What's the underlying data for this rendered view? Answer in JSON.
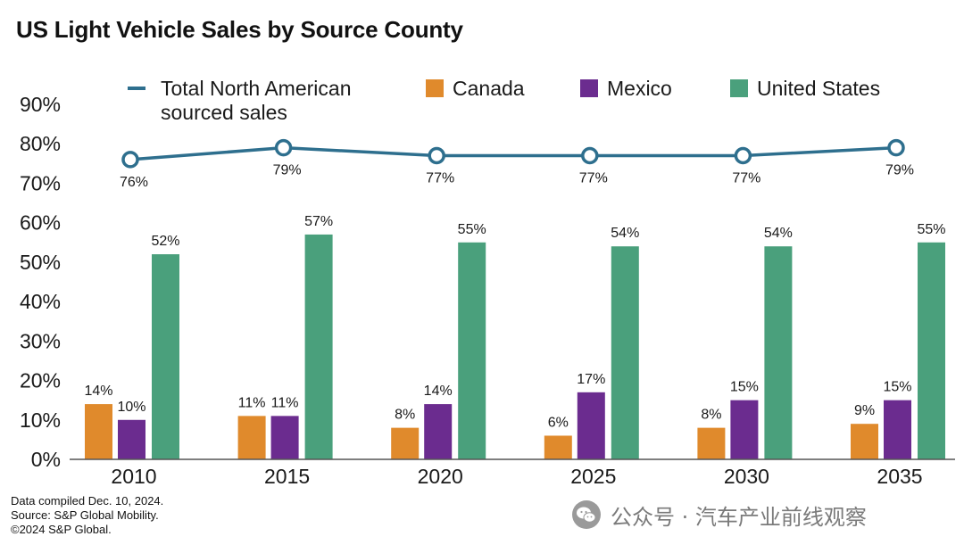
{
  "title": "US Light Vehicle Sales by Source County",
  "footer": {
    "line1": "Data compiled Dec. 10, 2024.",
    "line2": "Source: S&P Global Mobility.",
    "line3": "©2024 S&P Global."
  },
  "watermark": {
    "icon": "wechat-icon",
    "text": "公众号 · 汽车产业前线观察"
  },
  "colors": {
    "canada": "#e08a2c",
    "mexico": "#6b2c8f",
    "united_states": "#4aa07c",
    "total": "#2e6f8e"
  },
  "chart_data": {
    "type": "bar",
    "title": "US Light Vehicle Sales by Source County",
    "categories": [
      "2010",
      "2015",
      "2020",
      "2025",
      "2030",
      "2035"
    ],
    "ylim": [
      0,
      90
    ],
    "yticks": [
      0,
      10,
      20,
      30,
      40,
      50,
      60,
      70,
      80,
      90
    ],
    "ytick_labels": [
      "0%",
      "10%",
      "20%",
      "30%",
      "40%",
      "50%",
      "60%",
      "70%",
      "80%",
      "90%"
    ],
    "grid": false,
    "legend_position": "top",
    "series": [
      {
        "name": "Canada",
        "kind": "bar",
        "color": "#e08a2c",
        "values": [
          14,
          11,
          8,
          6,
          8,
          9
        ],
        "labels": [
          "14%",
          "11%",
          "8%",
          "6%",
          "8%",
          "9%"
        ]
      },
      {
        "name": "Mexico",
        "kind": "bar",
        "color": "#6b2c8f",
        "values": [
          10,
          11,
          14,
          17,
          15,
          15
        ],
        "labels": [
          "10%",
          "11%",
          "14%",
          "17%",
          "15%",
          "15%"
        ]
      },
      {
        "name": "United States",
        "kind": "bar",
        "color": "#4aa07c",
        "values": [
          52,
          57,
          55,
          54,
          54,
          55
        ],
        "labels": [
          "52%",
          "57%",
          "55%",
          "54%",
          "54%",
          "55%"
        ]
      },
      {
        "name": "Total North American sourced sales",
        "kind": "line",
        "color": "#2e6f8e",
        "legend_lines": [
          "Total North American",
          "sourced sales"
        ],
        "values": [
          76,
          79,
          77,
          77,
          77,
          79
        ],
        "labels": [
          "76%",
          "79%",
          "77%",
          "77%",
          "77%",
          "79%"
        ]
      }
    ]
  }
}
